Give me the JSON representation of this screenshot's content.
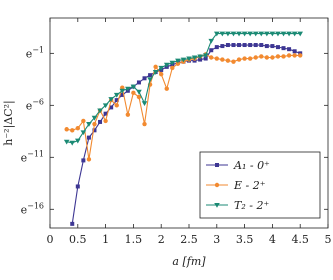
{
  "chart_data": {
    "type": "line",
    "x_label": "a [fm]",
    "y_label": "h⁻²|ΔC²|",
    "log_scale": "y",
    "log_base": "e",
    "legend": "lower right",
    "xlim": [
      0,
      5
    ],
    "xticks": [
      0,
      0.5,
      1,
      1.5,
      2,
      2.5,
      3,
      3.5,
      4,
      4.5,
      5
    ],
    "ylim": [
      1.86e-08,
      11.02
    ],
    "yticks": [
      {
        "value": 1.125e-07,
        "label": "e−16"
      },
      {
        "value": 1.67e-05,
        "label": "e−11"
      },
      {
        "value": 0.002479,
        "label": "e−6"
      },
      {
        "value": 0.3679,
        "label": "e−1"
      }
    ],
    "x": [
      0.3,
      0.4,
      0.5,
      0.6,
      0.7,
      0.8,
      0.9,
      1.0,
      1.1,
      1.2,
      1.3,
      1.4,
      1.5,
      1.6,
      1.7,
      1.8,
      1.9,
      2.0,
      2.1,
      2.2,
      2.3,
      2.4,
      2.5,
      2.6,
      2.7,
      2.8,
      2.9,
      3.0,
      3.1,
      3.2,
      3.3,
      3.4,
      3.5,
      3.6,
      3.7,
      3.8,
      3.9,
      4.0,
      4.1,
      4.2,
      4.3,
      4.4,
      4.5
    ],
    "series": [
      {
        "name": "A₁ - 0⁺",
        "color": "#3d3693",
        "marker": "square",
        "values": [
          null,
          2.77e-08,
          1.01e-06,
          1.24e-05,
          0.000111,
          0.000224,
          0.000501,
          0.00111,
          0.00203,
          0.00409,
          0.00674,
          0.01005,
          0.015,
          0.0224,
          0.0334,
          0.0451,
          0.0608,
          0.0743,
          0.1003,
          0.1225,
          0.1496,
          0.1653,
          0.1827,
          0.1827,
          0.2019,
          0.2231,
          0.497,
          0.67,
          0.741,
          0.819,
          0.819,
          0.819,
          0.819,
          0.819,
          0.819,
          0.819,
          0.741,
          0.741,
          0.67,
          0.607,
          0.549,
          0.449,
          0.368
        ]
      },
      {
        "name": "E - 2⁺",
        "color": "#f28a30",
        "marker": "circle",
        "values": [
          0.000248,
          0.000224,
          0.000274,
          0.000553,
          1.37e-05,
          0.000409,
          0.00151,
          0.000553,
          0.00409,
          0.00248,
          0.01356,
          0.00101,
          0.00822,
          0.00552,
          0.000409,
          0.0183,
          0.1003,
          0.0498,
          0.01226,
          0.0907,
          0.1353,
          0.1653,
          0.2019,
          0.2231,
          0.2725,
          0.3329,
          0.2466,
          0.2231,
          0.2019,
          0.1827,
          0.1653,
          0.2019,
          0.2231,
          0.2231,
          0.2466,
          0.2725,
          0.2466,
          0.2466,
          0.2725,
          0.2725,
          0.3012,
          0.3012,
          0.3012
        ]
      },
      {
        "name": "T₂ - 2⁺",
        "color": "#1b8a74",
        "marker": "triangle",
        "values": [
          7.47e-05,
          6.76e-05,
          8.26e-05,
          0.000184,
          0.000409,
          0.000747,
          0.00151,
          0.00248,
          0.00452,
          0.00674,
          0.01005,
          0.01226,
          0.015,
          0.0091,
          0.00303,
          0.0302,
          0.0608,
          0.0907,
          0.1225,
          0.1496,
          0.1827,
          0.2019,
          0.2231,
          0.2466,
          0.2725,
          0.3012,
          1.221,
          2.46,
          2.46,
          2.46,
          2.46,
          2.46,
          2.46,
          2.46,
          2.46,
          2.46,
          2.46,
          2.46,
          2.46,
          2.46,
          2.46,
          2.46,
          2.46
        ]
      }
    ]
  }
}
